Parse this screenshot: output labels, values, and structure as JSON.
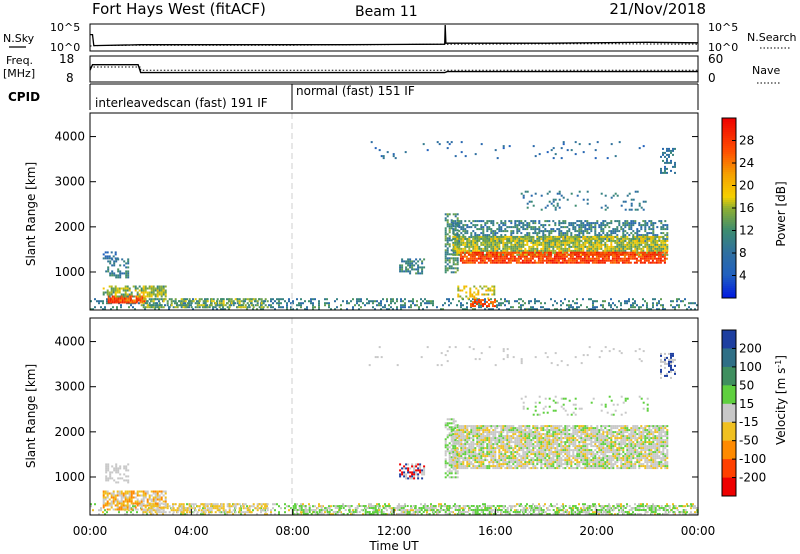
{
  "header": {
    "title": "Fort Hays West (fitACF)",
    "beam": "Beam 11",
    "date": "21/Nov/2018"
  },
  "chart_data": [
    {
      "type": "line",
      "name": "noise-panel",
      "left_label": "N.Sky",
      "right_label": "N.Search",
      "left_ticks": [
        "10^5",
        "10^0"
      ],
      "right_ticks": [
        "10^5",
        "10^0"
      ],
      "series": [
        {
          "key": "n_sky",
          "style": "solid",
          "x": [
            0,
            0.1,
            0.15,
            2,
            6,
            10,
            14,
            14.02,
            14.05,
            18,
            22,
            24
          ],
          "y": [
            3.0,
            3.0,
            0.7,
            0.9,
            0.9,
            0.9,
            1.0,
            5.0,
            1.2,
            1.2,
            1.4,
            1.3
          ]
        },
        {
          "key": "n_search",
          "style": "dotted",
          "x": [
            0,
            0.15,
            2,
            8,
            14,
            20,
            24
          ],
          "y": [
            0.6,
            0.7,
            0.8,
            0.8,
            1.0,
            1.1,
            1.0
          ]
        }
      ],
      "xlim": [
        0,
        24
      ],
      "ylim": [
        0,
        5
      ]
    },
    {
      "type": "line",
      "name": "frequency-panel",
      "left_label_top": "Freq.",
      "left_label_bottom": "[MHz]",
      "right_label": "Nave",
      "left_ticks": [
        "18",
        "8"
      ],
      "right_ticks": [
        "60",
        "0"
      ],
      "series": [
        {
          "key": "frequency",
          "style": "solid",
          "x": [
            0,
            0.1,
            1.9,
            2.0,
            14,
            14.1,
            24
          ],
          "y": [
            12.5,
            14.8,
            14.8,
            11.5,
            11.5,
            11.9,
            11.9
          ],
          "ylim": [
            8,
            18
          ]
        },
        {
          "key": "nave",
          "style": "dotted",
          "x": [
            0,
            2,
            2,
            14,
            24
          ],
          "y": [
            35,
            35,
            27,
            27,
            27
          ],
          "ylim": [
            0,
            60
          ]
        }
      ],
      "xlim": [
        0,
        24
      ]
    },
    {
      "type": "table",
      "name": "cpid-panel",
      "label": "CPID",
      "entries": [
        {
          "start": 0,
          "text": "interleavedscan (fast) 191 IF"
        },
        {
          "start": 8,
          "text": "normal (fast) 151 IF"
        }
      ],
      "xlim": [
        0,
        24
      ]
    },
    {
      "type": "heatmap",
      "name": "power-panel",
      "ylabel": "Slant Range [km]",
      "xlim": [
        0,
        24
      ],
      "ylim": [
        180,
        4500
      ],
      "yticks": [
        1000,
        2000,
        3000,
        4000
      ],
      "colorbar": {
        "label": "Power [dB]",
        "range": [
          0,
          32
        ],
        "ticks": [
          4,
          8,
          12,
          16,
          20,
          24,
          28
        ],
        "stops": [
          {
            "v": 0,
            "c": "#0018e0"
          },
          {
            "v": 4,
            "c": "#2060c0"
          },
          {
            "v": 8,
            "c": "#2f6fa0"
          },
          {
            "v": 12,
            "c": "#3c8c70"
          },
          {
            "v": 16,
            "c": "#90b030"
          },
          {
            "v": 18,
            "c": "#f5d000"
          },
          {
            "v": 22,
            "c": "#f5a000"
          },
          {
            "v": 26,
            "c": "#ff5000"
          },
          {
            "v": 32,
            "c": "#ee0000"
          }
        ]
      },
      "regions": [
        {
          "t": [
            0,
            24
          ],
          "r": [
            180,
            420
          ],
          "v": [
            6,
            14
          ],
          "d": 0.32
        },
        {
          "t": [
            0.7,
            2.2
          ],
          "r": [
            330,
            480
          ],
          "v": [
            22,
            30
          ],
          "d": 0.9
        },
        {
          "t": [
            0.5,
            3.0
          ],
          "r": [
            450,
            700
          ],
          "v": [
            10,
            20
          ],
          "d": 0.7
        },
        {
          "t": [
            0.6,
            1.5
          ],
          "r": [
            900,
            1300
          ],
          "v": [
            6,
            13
          ],
          "d": 0.45
        },
        {
          "t": [
            0.5,
            1.1
          ],
          "r": [
            1300,
            1500
          ],
          "v": [
            4,
            10
          ],
          "d": 0.3
        },
        {
          "t": [
            2.0,
            7.0
          ],
          "r": [
            240,
            420
          ],
          "v": [
            10,
            18
          ],
          "d": 0.6
        },
        {
          "t": [
            12.2,
            13.2
          ],
          "r": [
            950,
            1300
          ],
          "v": [
            6,
            14
          ],
          "d": 0.5
        },
        {
          "t": [
            14.0,
            14.5
          ],
          "r": [
            1000,
            2300
          ],
          "v": [
            8,
            16
          ],
          "d": 0.6
        },
        {
          "t": [
            14.5,
            16.0
          ],
          "r": [
            400,
            700
          ],
          "v": [
            14,
            22
          ],
          "d": 0.35
        },
        {
          "t": [
            15.0,
            16.0
          ],
          "r": [
            250,
            400
          ],
          "v": [
            24,
            30
          ],
          "d": 0.6
        },
        {
          "t": [
            14.3,
            22.8
          ],
          "r": [
            1700,
            2150
          ],
          "v": [
            6,
            14
          ],
          "d": 0.55
        },
        {
          "t": [
            14.3,
            22.8
          ],
          "r": [
            1400,
            1800
          ],
          "v": [
            12,
            20
          ],
          "d": 0.85
        },
        {
          "t": [
            14.6,
            22.8
          ],
          "r": [
            1200,
            1450
          ],
          "v": [
            24,
            31
          ],
          "d": 0.85
        },
        {
          "t": [
            17.0,
            22.0
          ],
          "r": [
            2400,
            2800
          ],
          "v": [
            6,
            12
          ],
          "d": 0.12
        },
        {
          "t": [
            22.5,
            23.1
          ],
          "r": [
            3200,
            3750
          ],
          "v": [
            6,
            12
          ],
          "d": 0.4
        },
        {
          "t": [
            11.0,
            22.0
          ],
          "r": [
            3500,
            3900
          ],
          "v": [
            4,
            10
          ],
          "d": 0.03
        }
      ]
    },
    {
      "type": "heatmap",
      "name": "velocity-panel",
      "ylabel": "Slant Range [km]",
      "xlabel": "Time UT",
      "xticks": [
        "00:00",
        "04:00",
        "08:00",
        "12:00",
        "16:00",
        "20:00",
        "00:00"
      ],
      "xlim": [
        0,
        24
      ],
      "ylim": [
        180,
        4500
      ],
      "yticks": [
        1000,
        2000,
        3000,
        4000
      ],
      "colorbar": {
        "label": "Velocity [m s",
        "label_sup": "-1",
        "label_end": "]",
        "ticks": [
          "200",
          "100",
          "50",
          "15",
          "-15",
          "-50",
          "-100",
          "-200"
        ],
        "segments": [
          "#1e3fa0",
          "#2f6f86",
          "#3f8f5f",
          "#5fd03f",
          "#c8c8c8",
          "#f0c020",
          "#ff8a00",
          "#ff4000",
          "#ee0000"
        ]
      },
      "regions": [
        {
          "t": [
            0,
            24
          ],
          "r": [
            180,
            420
          ],
          "c": [
            "#5fd03f",
            "#c8c8c8",
            "#f0c020"
          ],
          "d": 0.3
        },
        {
          "t": [
            0.5,
            3.0
          ],
          "r": [
            300,
            700
          ],
          "c": [
            "#f0c020",
            "#c8c8c8",
            "#ff8a00"
          ],
          "d": 0.7
        },
        {
          "t": [
            0.6,
            1.5
          ],
          "r": [
            900,
            1300
          ],
          "c": [
            "#c8c8c8"
          ],
          "d": 0.45
        },
        {
          "t": [
            2.0,
            7.0
          ],
          "r": [
            240,
            420
          ],
          "c": [
            "#f0c020",
            "#c8c8c8"
          ],
          "d": 0.6
        },
        {
          "t": [
            8.0,
            24.0
          ],
          "r": [
            180,
            380
          ],
          "c": [
            "#5fd03f",
            "#c8c8c8"
          ],
          "d": 0.55
        },
        {
          "t": [
            12.2,
            13.2
          ],
          "r": [
            950,
            1300
          ],
          "c": [
            "#c8c8c8",
            "#ee0000",
            "#1e3fa0"
          ],
          "d": 0.5
        },
        {
          "t": [
            14.0,
            14.5
          ],
          "r": [
            1000,
            2300
          ],
          "c": [
            "#c8c8c8",
            "#5fd03f"
          ],
          "d": 0.6
        },
        {
          "t": [
            14.3,
            22.8
          ],
          "r": [
            1200,
            2150
          ],
          "c": [
            "#c8c8c8",
            "#c8c8c8",
            "#c8c8c8",
            "#5fd03f",
            "#f0c020"
          ],
          "d": 0.85
        },
        {
          "t": [
            17.0,
            22.0
          ],
          "r": [
            2400,
            2800
          ],
          "c": [
            "#c8c8c8",
            "#5fd03f"
          ],
          "d": 0.12
        },
        {
          "t": [
            22.5,
            23.1
          ],
          "r": [
            3200,
            3750
          ],
          "c": [
            "#c8c8c8",
            "#1e3fa0"
          ],
          "d": 0.4
        },
        {
          "t": [
            11.0,
            22.0
          ],
          "r": [
            3500,
            3900
          ],
          "c": [
            "#c8c8c8"
          ],
          "d": 0.03
        }
      ]
    }
  ]
}
